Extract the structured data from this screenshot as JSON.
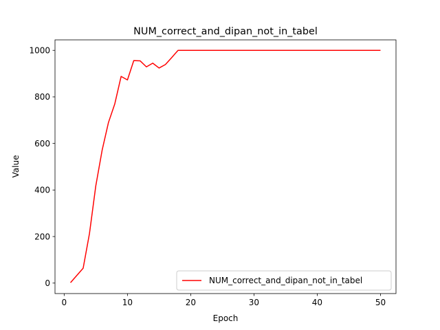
{
  "chart_data": {
    "type": "line",
    "title": "NUM_correct_and_dipan_not_in_tabel",
    "xlabel": "Epoch",
    "ylabel": "Value",
    "xlim": [
      -1.45,
      52.45
    ],
    "ylim": [
      -45,
      1045
    ],
    "xticks": [
      0,
      10,
      20,
      30,
      40,
      50
    ],
    "yticks": [
      0,
      200,
      400,
      600,
      800,
      1000
    ],
    "grid": false,
    "legend_position": "lower-right",
    "series": [
      {
        "name": "NUM_correct_and_dipan_not_in_tabel",
        "color": "#ff0000",
        "x": [
          1,
          2,
          3,
          4,
          5,
          6,
          7,
          8,
          9,
          10,
          11,
          12,
          13,
          14,
          15,
          16,
          17,
          18,
          19,
          20,
          21,
          22,
          23,
          24,
          25,
          26,
          27,
          28,
          29,
          30,
          31,
          32,
          33,
          34,
          35,
          36,
          37,
          38,
          39,
          40,
          41,
          42,
          43,
          44,
          45,
          46,
          47,
          48,
          49,
          50
        ],
        "values": [
          2,
          33,
          64,
          213,
          418,
          571,
          690,
          770,
          888,
          873,
          956,
          955,
          929,
          945,
          924,
          939,
          969,
          1000,
          1000,
          1000,
          1000,
          1000,
          1000,
          1000,
          1000,
          1000,
          1000,
          1000,
          1000,
          1000,
          1000,
          1000,
          1000,
          1000,
          1000,
          1000,
          1000,
          1000,
          1000,
          1000,
          1000,
          1000,
          1000,
          1000,
          1000,
          1000,
          1000,
          1000,
          1000,
          1000
        ]
      }
    ]
  }
}
